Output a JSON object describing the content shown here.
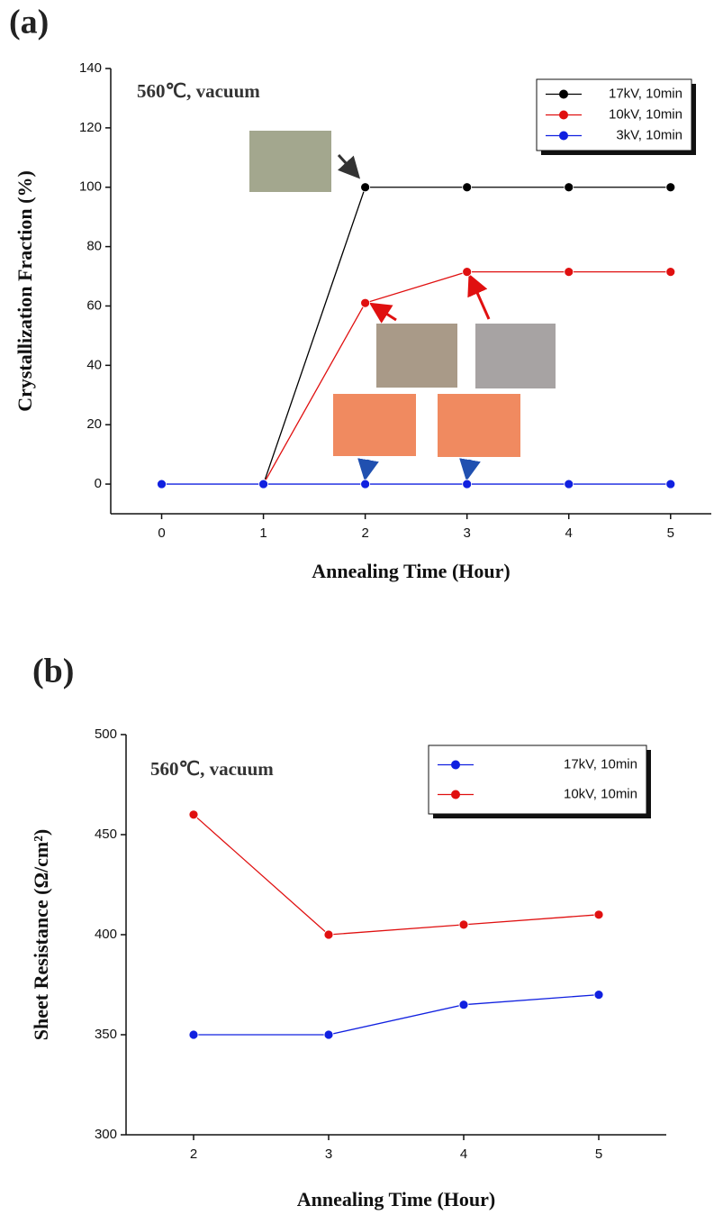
{
  "chart_data": [
    {
      "type": "line",
      "panel": "(a)",
      "annotation": "560℃, vacuum",
      "x_label": "Annealing Time (Hour)",
      "y_label": "Crystallization Fraction (%)",
      "x": [
        0,
        1,
        2,
        3,
        4,
        5
      ],
      "series": [
        {
          "name": "17kV, 10min",
          "color": "#000000",
          "values": [
            null,
            0,
            100,
            100,
            100,
            100
          ]
        },
        {
          "name": "10kV, 10min",
          "color": "#e01010",
          "values": [
            null,
            0,
            61,
            71.5,
            71.5,
            71.5
          ]
        },
        {
          "name": "3kV, 10min",
          "color": "#1020e0",
          "values": [
            0,
            0,
            0,
            0,
            0,
            0
          ]
        }
      ],
      "xlim": [
        -0.5,
        5.4
      ],
      "ylim": [
        -10,
        140
      ],
      "xticks": [
        0,
        1,
        2,
        3,
        4,
        5
      ],
      "yticks": [
        0,
        20,
        40,
        60,
        80,
        100,
        120,
        140
      ],
      "legend": "upper right"
    },
    {
      "type": "line",
      "panel": "(b)",
      "annotation": "560℃, vacuum",
      "x_label": "Annealing Time (Hour)",
      "y_label": "Sheet Resistance (Ω/cm²)",
      "x": [
        2,
        3,
        4,
        5
      ],
      "series": [
        {
          "name": "17kV, 10min",
          "color": "#1020e0",
          "values": [
            350,
            350,
            365,
            370
          ]
        },
        {
          "name": "10kV, 10min",
          "color": "#e01010",
          "values": [
            460,
            400,
            405,
            410
          ]
        }
      ],
      "xlim": [
        1.5,
        5.5
      ],
      "ylim": [
        300,
        500
      ],
      "xticks": [
        2,
        3,
        4,
        5
      ],
      "yticks": [
        300,
        350,
        400,
        450,
        500
      ],
      "legend": "upper right"
    }
  ]
}
